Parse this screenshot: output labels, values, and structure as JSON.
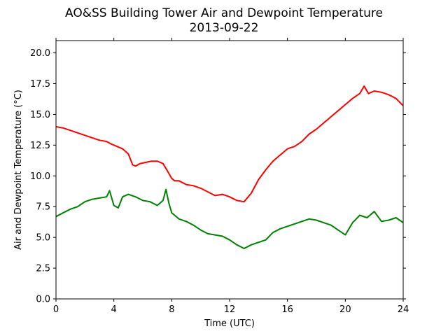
{
  "chart_data": {
    "type": "line",
    "title": "AO&SS Building Tower Air and Dewpoint Temperature",
    "subtitle": "2013-09-22",
    "xlabel": "Time (UTC)",
    "ylabel": "Air and Dewpoint Temperature (°C)",
    "xlim": [
      0,
      24
    ],
    "ylim": [
      0,
      21
    ],
    "x_ticks": [
      0,
      4,
      8,
      12,
      16,
      20,
      24
    ],
    "x_tick_labels": [
      "0",
      "4",
      "8",
      "12",
      "16",
      "20",
      "24"
    ],
    "y_ticks": [
      0,
      2.5,
      5,
      7.5,
      10,
      12.5,
      15,
      17.5,
      20
    ],
    "y_tick_labels": [
      "0.0",
      "2.5",
      "5.0",
      "7.5",
      "10.0",
      "12.5",
      "15.0",
      "17.5",
      "20.0"
    ],
    "grid": false,
    "legend": "none",
    "series": [
      {
        "color": "#ff0000",
        "x": [
          0,
          0.5,
          1,
          1.5,
          2,
          2.5,
          3,
          3.5,
          3.8,
          4.2,
          4.6,
          5.0,
          5.3,
          5.5,
          5.8,
          6.2,
          6.6,
          7.0,
          7.4,
          7.6,
          7.8,
          8.0,
          8.2,
          8.5,
          9.0,
          9.5,
          10.0,
          10.5,
          11.0,
          11.5,
          12.0,
          12.5,
          13.0,
          13.5,
          14.0,
          14.5,
          15.0,
          15.5,
          16.0,
          16.5,
          17.0,
          17.5,
          18.0,
          18.5,
          19.0,
          19.5,
          20.0,
          20.5,
          21.0,
          21.3,
          21.6,
          22.0,
          22.5,
          23.0,
          23.5,
          24.0
        ],
        "y": [
          14.0,
          13.9,
          13.7,
          13.5,
          13.3,
          13.1,
          12.9,
          12.8,
          12.6,
          12.4,
          12.2,
          11.8,
          10.9,
          10.8,
          11.0,
          11.1,
          11.2,
          11.2,
          11.0,
          10.6,
          10.2,
          9.8,
          9.6,
          9.6,
          9.3,
          9.2,
          9.0,
          8.7,
          8.4,
          8.5,
          8.3,
          8.0,
          7.9,
          8.6,
          9.7,
          10.5,
          11.2,
          11.7,
          12.2,
          12.4,
          12.8,
          13.4,
          13.8,
          14.3,
          14.8,
          15.3,
          15.8,
          16.3,
          16.7,
          17.3,
          16.7,
          16.9,
          16.8,
          16.6,
          16.3,
          15.7
        ]
      },
      {
        "color": "#008000",
        "x": [
          0,
          0.5,
          1,
          1.5,
          2,
          2.5,
          3,
          3.5,
          3.7,
          4.0,
          4.3,
          4.6,
          5.0,
          5.5,
          6.0,
          6.5,
          7.0,
          7.4,
          7.6,
          7.8,
          8.0,
          8.5,
          9.0,
          9.5,
          10.0,
          10.5,
          11.0,
          11.5,
          12.0,
          12.5,
          13.0,
          13.5,
          14.0,
          14.5,
          15.0,
          15.5,
          16.0,
          16.5,
          17.0,
          17.5,
          18.0,
          18.5,
          19.0,
          19.5,
          20.0,
          20.5,
          21.0,
          21.5,
          22.0,
          22.5,
          23.0,
          23.5,
          24.0
        ],
        "y": [
          6.7,
          7.0,
          7.3,
          7.5,
          7.9,
          8.1,
          8.2,
          8.3,
          8.8,
          7.6,
          7.4,
          8.3,
          8.5,
          8.3,
          8.0,
          7.9,
          7.6,
          8.0,
          8.9,
          7.8,
          7.0,
          6.5,
          6.3,
          6.0,
          5.6,
          5.3,
          5.2,
          5.1,
          4.8,
          4.4,
          4.1,
          4.4,
          4.6,
          4.8,
          5.4,
          5.7,
          5.9,
          6.1,
          6.3,
          6.5,
          6.4,
          6.2,
          6.0,
          5.6,
          5.2,
          6.2,
          6.8,
          6.6,
          7.1,
          6.3,
          6.4,
          6.6,
          6.2
        ]
      }
    ]
  }
}
